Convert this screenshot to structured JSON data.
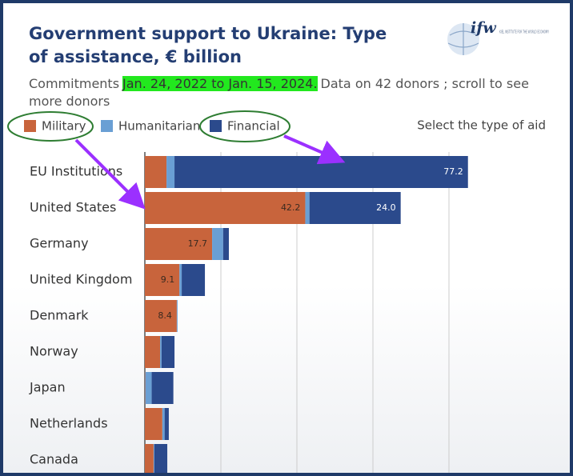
{
  "chart_data": {
    "type": "stacked_bar",
    "orientation": "horizontal",
    "title": "Government support to Ukraine:  Type of assistance, € billion",
    "subtitle": {
      "prefix": "Commitments",
      "highlight": "Jan. 24, 2022 to Jan. 15, 2024.",
      "suffix": "Data on 42 donors ; scroll to see more donors"
    },
    "selector_label": "Select the type of aid",
    "logo": {
      "text": "ifw",
      "caption": "KIEL INSTITUTE FOR THE WORLD ECONOMY"
    },
    "categories": [
      "EU Institutions",
      "United States",
      "Germany",
      "United Kingdom",
      "Denmark",
      "Norway",
      "Japan",
      "Netherlands",
      "Canada"
    ],
    "series": [
      {
        "name": "Military",
        "color": "#c8643c",
        "values": [
          5.7,
          42.2,
          17.7,
          9.1,
          8.4,
          4.0,
          0.1,
          4.6,
          2.3
        ],
        "value_labels": [
          null,
          "42.2",
          "17.7",
          "9.1",
          "8.4",
          null,
          null,
          null,
          null
        ]
      },
      {
        "name": "Humanitarian",
        "color": "#6a9fd4",
        "values": [
          2.1,
          1.1,
          2.9,
          0.6,
          0.2,
          0.4,
          1.7,
          0.6,
          0.2
        ],
        "value_labels": [
          null,
          null,
          null,
          null,
          null,
          null,
          null,
          null,
          null
        ]
      },
      {
        "name": "Financial",
        "color": "#2b4a8c",
        "values": [
          77.2,
          24.0,
          1.5,
          6.1,
          0,
          3.4,
          5.7,
          1.1,
          3.4
        ],
        "value_labels": [
          "77.2",
          "24.0",
          null,
          null,
          null,
          null,
          null,
          null,
          null
        ]
      }
    ],
    "xlim": [
      0,
      100
    ],
    "xticks": [
      0,
      20,
      40,
      60,
      80
    ],
    "grid": true
  }
}
